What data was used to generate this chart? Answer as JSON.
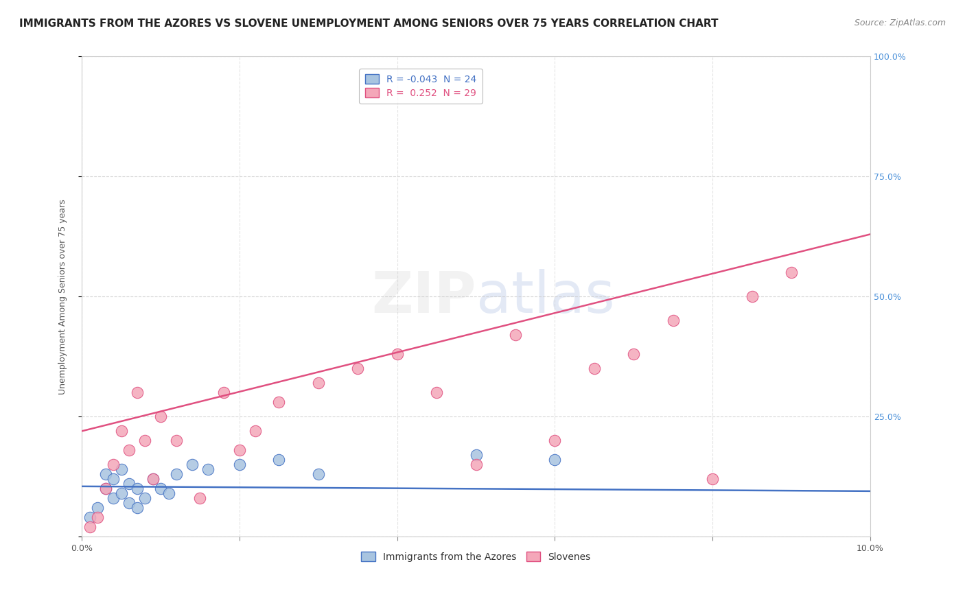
{
  "title": "IMMIGRANTS FROM THE AZORES VS SLOVENE UNEMPLOYMENT AMONG SENIORS OVER 75 YEARS CORRELATION CHART",
  "source": "Source: ZipAtlas.com",
  "ylabel": "Unemployment Among Seniors over 75 years",
  "legend_blue_r": "-0.043",
  "legend_blue_n": "24",
  "legend_pink_r": "0.252",
  "legend_pink_n": "29",
  "blue_scatter_x": [
    0.001,
    0.002,
    0.003,
    0.003,
    0.004,
    0.004,
    0.005,
    0.005,
    0.006,
    0.006,
    0.007,
    0.007,
    0.008,
    0.009,
    0.01,
    0.011,
    0.012,
    0.014,
    0.016,
    0.02,
    0.025,
    0.03,
    0.05,
    0.06
  ],
  "blue_scatter_y": [
    0.04,
    0.06,
    0.1,
    0.13,
    0.08,
    0.12,
    0.09,
    0.14,
    0.07,
    0.11,
    0.06,
    0.1,
    0.08,
    0.12,
    0.1,
    0.09,
    0.13,
    0.15,
    0.14,
    0.15,
    0.16,
    0.13,
    0.17,
    0.16
  ],
  "pink_scatter_x": [
    0.001,
    0.002,
    0.003,
    0.004,
    0.005,
    0.006,
    0.007,
    0.008,
    0.009,
    0.01,
    0.012,
    0.015,
    0.018,
    0.02,
    0.022,
    0.025,
    0.03,
    0.035,
    0.04,
    0.045,
    0.05,
    0.055,
    0.06,
    0.065,
    0.07,
    0.075,
    0.08,
    0.085,
    0.09
  ],
  "pink_scatter_y": [
    0.02,
    0.04,
    0.1,
    0.15,
    0.22,
    0.18,
    0.3,
    0.2,
    0.12,
    0.25,
    0.2,
    0.08,
    0.3,
    0.18,
    0.22,
    0.28,
    0.32,
    0.35,
    0.38,
    0.3,
    0.15,
    0.42,
    0.2,
    0.35,
    0.38,
    0.45,
    0.12,
    0.5,
    0.55
  ],
  "blue_line_x": [
    0.0,
    0.1
  ],
  "blue_line_y": [
    0.105,
    0.095
  ],
  "pink_line_x": [
    0.0,
    0.1
  ],
  "pink_line_y": [
    0.22,
    0.63
  ],
  "xlim": [
    0.0,
    0.1
  ],
  "ylim": [
    0.0,
    1.0
  ],
  "blue_color": "#a8c4e0",
  "blue_line_color": "#4472c4",
  "pink_color": "#f4a7b9",
  "pink_line_color": "#e05080",
  "background_color": "#ffffff",
  "grid_color": "#cccccc",
  "title_fontsize": 11,
  "source_fontsize": 9,
  "label_fontsize": 9,
  "tick_fontsize": 9
}
